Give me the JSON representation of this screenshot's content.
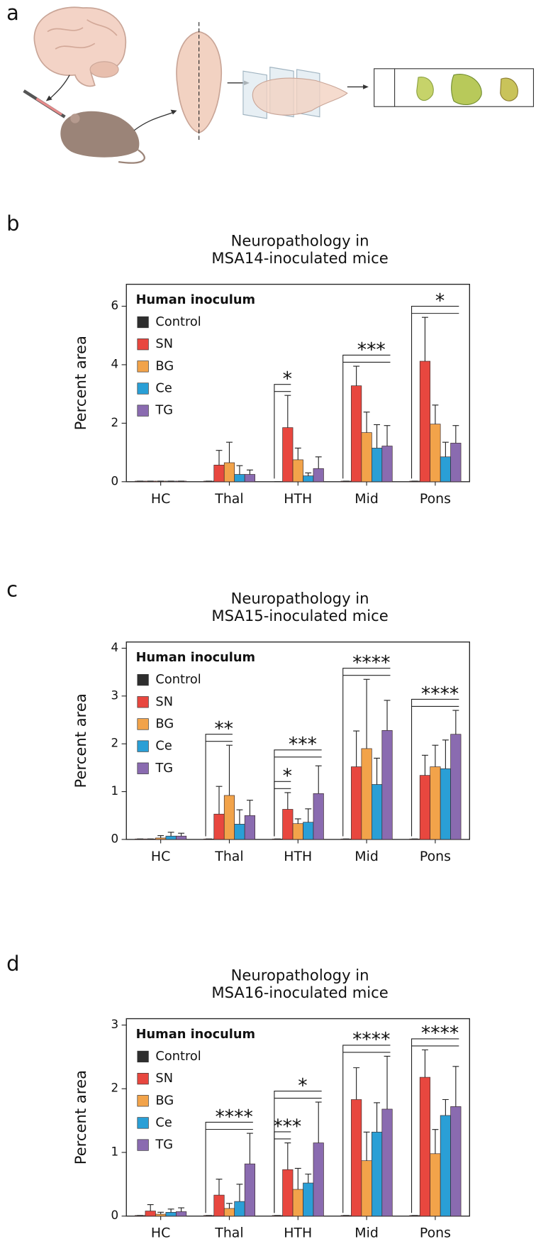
{
  "panel_labels": [
    "a",
    "b",
    "c",
    "d"
  ],
  "chart_data": [
    {
      "type": "bar",
      "title": [
        "Neuropathology in",
        "MSA14-inoculated mice"
      ],
      "ylabel": "Percent area",
      "legend_title": "Human inoculum",
      "categories": [
        "HC",
        "Thal",
        "HTH",
        "Mid",
        "Pons"
      ],
      "ylim": [
        0,
        6.75
      ],
      "yticks": [
        0,
        2,
        4,
        6
      ],
      "series": [
        {
          "name": "Control",
          "color": "#2e2e2e",
          "values": [
            0.02,
            0.02,
            0,
            0.02,
            0.02
          ],
          "errors": [
            0,
            0,
            0,
            0,
            0
          ]
        },
        {
          "name": "SN",
          "color": "#e8473f",
          "values": [
            0.02,
            0.57,
            1.85,
            3.28,
            4.12
          ],
          "errors": [
            0,
            0.5,
            1.1,
            0.67,
            1.5
          ]
        },
        {
          "name": "BG",
          "color": "#f2a34a",
          "values": [
            0.02,
            0.65,
            0.75,
            1.68,
            1.97
          ],
          "errors": [
            0,
            0.7,
            0.4,
            0.7,
            0.65
          ]
        },
        {
          "name": "Ce",
          "color": "#2a9fd6",
          "values": [
            0.02,
            0.25,
            0.2,
            1.15,
            0.85
          ],
          "errors": [
            0,
            0.3,
            0.1,
            0.8,
            0.5
          ]
        },
        {
          "name": "TG",
          "color": "#8a6bb0",
          "values": [
            0.02,
            0.25,
            0.45,
            1.22,
            1.32
          ],
          "errors": [
            0,
            0.15,
            0.4,
            0.7,
            0.6
          ]
        }
      ],
      "annotations": [
        {
          "text": "*",
          "category": 2,
          "series": [
            0,
            1
          ]
        },
        {
          "text": "***",
          "category": 3,
          "series": [
            0,
            4
          ]
        },
        {
          "text": "*",
          "category": 4,
          "series": [
            0,
            4
          ]
        }
      ]
    },
    {
      "type": "bar",
      "title": [
        "Neuropathology in",
        "MSA15-inoculated mice"
      ],
      "ylabel": "Percent area",
      "legend_title": "Human inoculum",
      "categories": [
        "HC",
        "Thal",
        "HTH",
        "Mid",
        "Pons"
      ],
      "ylim": [
        0,
        4.13
      ],
      "yticks": [
        0,
        1,
        2,
        3,
        4
      ],
      "series": [
        {
          "name": "Control",
          "color": "#2e2e2e",
          "values": [
            0.01,
            0.01,
            0.01,
            0.01,
            0.01
          ],
          "errors": [
            0,
            0,
            0,
            0,
            0
          ]
        },
        {
          "name": "SN",
          "color": "#e8473f",
          "values": [
            0.01,
            0.53,
            0.63,
            1.52,
            1.34
          ],
          "errors": [
            0,
            0.58,
            0.35,
            0.75,
            0.42
          ]
        },
        {
          "name": "BG",
          "color": "#f2a34a",
          "values": [
            0.03,
            0.92,
            0.33,
            1.9,
            1.52
          ],
          "errors": [
            0.05,
            1.05,
            0.1,
            1.45,
            0.45
          ]
        },
        {
          "name": "Ce",
          "color": "#2a9fd6",
          "values": [
            0.07,
            0.32,
            0.36,
            1.15,
            1.48
          ],
          "errors": [
            0.08,
            0.3,
            0.28,
            0.55,
            0.6
          ]
        },
        {
          "name": "TG",
          "color": "#8a6bb0",
          "values": [
            0.07,
            0.5,
            0.96,
            2.28,
            2.2
          ],
          "errors": [
            0.06,
            0.32,
            0.58,
            0.63,
            0.5
          ]
        }
      ],
      "annotations": [
        {
          "text": "**",
          "category": 1,
          "series": [
            0,
            2
          ]
        },
        {
          "text": "*",
          "category": 2,
          "series": [
            0,
            1
          ]
        },
        {
          "text": "***",
          "category": 2,
          "series": [
            0,
            4
          ]
        },
        {
          "text": "****",
          "category": 3,
          "series": [
            0,
            4
          ]
        },
        {
          "text": "****",
          "category": 4,
          "series": [
            0,
            4
          ]
        }
      ]
    },
    {
      "type": "bar",
      "title": [
        "Neuropathology in",
        "MSA16-inoculated mice"
      ],
      "ylabel": "Percent area",
      "legend_title": "Human inoculum",
      "categories": [
        "HC",
        "Thal",
        "HTH",
        "Mid",
        "Pons"
      ],
      "ylim": [
        0,
        3.1
      ],
      "yticks": [
        0,
        1,
        2,
        3
      ],
      "series": [
        {
          "name": "Control",
          "color": "#2e2e2e",
          "values": [
            0.01,
            0.01,
            0.01,
            0.01,
            0.01
          ],
          "errors": [
            0,
            0,
            0,
            0,
            0
          ]
        },
        {
          "name": "SN",
          "color": "#e8473f",
          "values": [
            0.08,
            0.33,
            0.73,
            1.83,
            2.18
          ],
          "errors": [
            0.1,
            0.25,
            0.42,
            0.5,
            0.43
          ]
        },
        {
          "name": "BG",
          "color": "#f2a34a",
          "values": [
            0.03,
            0.12,
            0.42,
            0.87,
            0.98
          ],
          "errors": [
            0.03,
            0.08,
            0.33,
            0.45,
            0.38
          ]
        },
        {
          "name": "Ce",
          "color": "#2a9fd6",
          "values": [
            0.06,
            0.23,
            0.52,
            1.32,
            1.58
          ],
          "errors": [
            0.05,
            0.27,
            0.14,
            0.46,
            0.25
          ]
        },
        {
          "name": "TG",
          "color": "#8a6bb0",
          "values": [
            0.07,
            0.82,
            1.15,
            1.68,
            1.72
          ],
          "errors": [
            0.06,
            0.48,
            0.64,
            0.83,
            0.63
          ]
        }
      ],
      "annotations": [
        {
          "text": "****",
          "category": 1,
          "series": [
            0,
            4
          ]
        },
        {
          "text": "***",
          "category": 2,
          "series": [
            0,
            1
          ]
        },
        {
          "text": "*",
          "category": 2,
          "series": [
            0,
            4
          ]
        },
        {
          "text": "****",
          "category": 3,
          "series": [
            0,
            4
          ]
        },
        {
          "text": "****",
          "category": 4,
          "series": [
            0,
            4
          ]
        }
      ]
    }
  ]
}
